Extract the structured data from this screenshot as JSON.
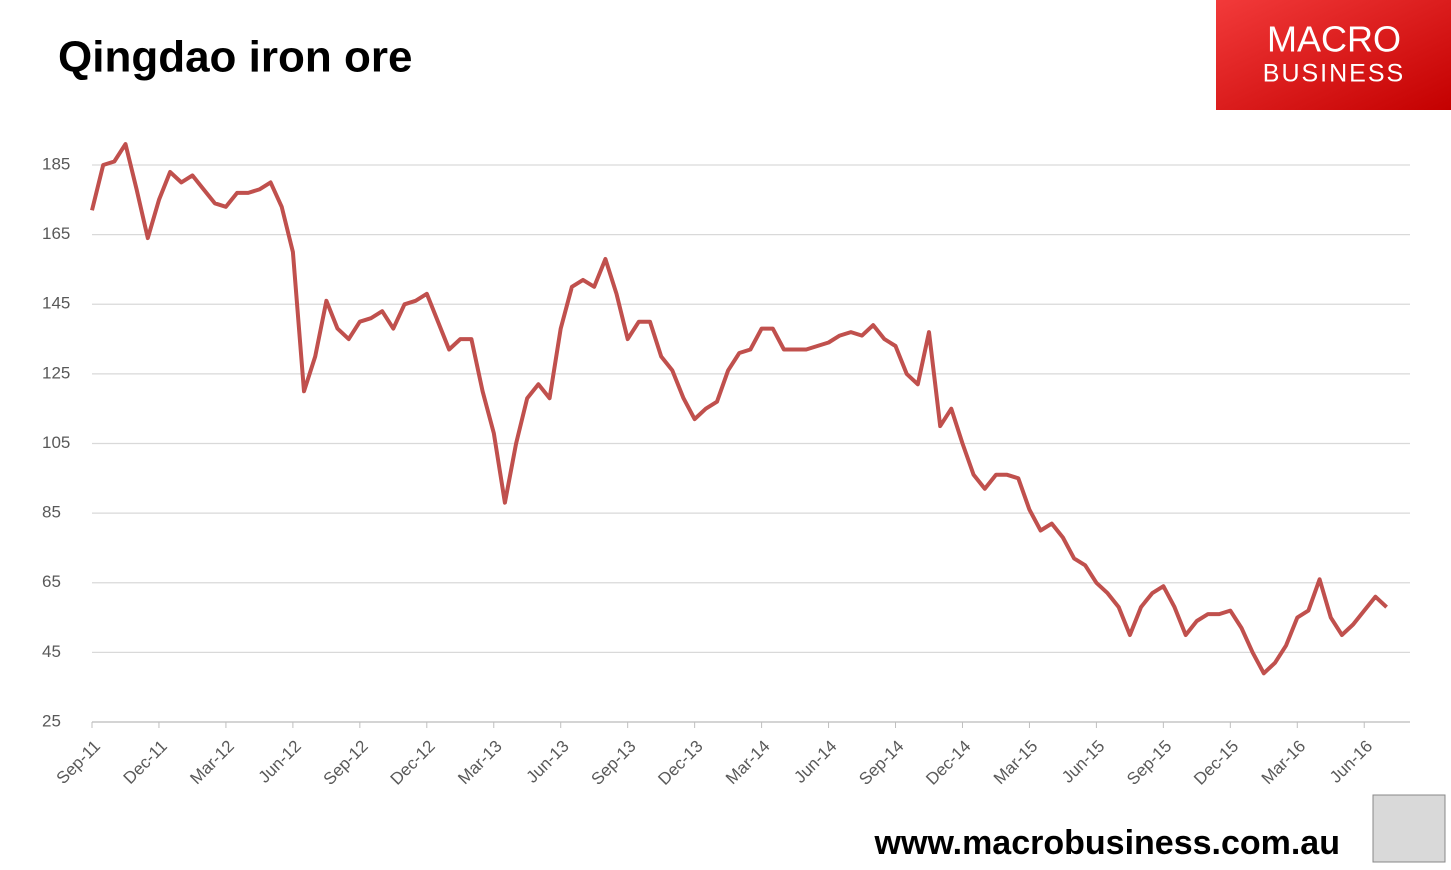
{
  "chart_data": {
    "type": "line",
    "title": "Qingdao iron ore",
    "brand": {
      "line1": "MACRO",
      "line2": "BUSINESS"
    },
    "footer": "www.macrobusiness.com.au",
    "categories": [
      "Sep-11",
      null,
      null,
      null,
      null,
      null,
      "Dec-11",
      null,
      null,
      null,
      null,
      null,
      "Mar-12",
      null,
      null,
      null,
      null,
      null,
      "Jun-12",
      null,
      null,
      null,
      null,
      null,
      "Sep-12",
      null,
      null,
      null,
      null,
      null,
      "Dec-12",
      null,
      null,
      null,
      null,
      null,
      "Mar-13",
      null,
      null,
      null,
      null,
      null,
      "Jun-13",
      null,
      null,
      null,
      null,
      null,
      "Sep-13",
      null,
      null,
      null,
      null,
      null,
      "Dec-13",
      null,
      null,
      null,
      null,
      null,
      "Mar-14",
      null,
      null,
      null,
      null,
      null,
      "Jun-14",
      null,
      null,
      null,
      null,
      null,
      "Sep-14",
      null,
      null,
      null,
      null,
      null,
      "Dec-14",
      null,
      null,
      null,
      null,
      null,
      "Mar-15",
      null,
      null,
      null,
      null,
      null,
      "Jun-15",
      null,
      null,
      null,
      null,
      null,
      "Sep-15",
      null,
      null,
      null,
      null,
      null,
      "Dec-15",
      null,
      null,
      null,
      null,
      null,
      "Mar-16",
      null,
      null,
      null,
      null,
      null,
      "Jun-16",
      null,
      null
    ],
    "series": [
      {
        "name": "Qingdao iron ore",
        "color": "#c0504d",
        "values": [
          172,
          185,
          186,
          191,
          178,
          164,
          175,
          183,
          180,
          182,
          178,
          174,
          173,
          177,
          177,
          178,
          180,
          173,
          160,
          120,
          130,
          146,
          138,
          135,
          140,
          141,
          143,
          138,
          145,
          146,
          148,
          140,
          132,
          135,
          135,
          120,
          108,
          88,
          105,
          118,
          122,
          118,
          138,
          150,
          152,
          150,
          158,
          148,
          135,
          140,
          140,
          130,
          126,
          118,
          112,
          115,
          117,
          126,
          131,
          132,
          138,
          138,
          132,
          132,
          132,
          133,
          134,
          136,
          137,
          136,
          139,
          135,
          133,
          125,
          122,
          137,
          110,
          115,
          105,
          96,
          92,
          96,
          96,
          95,
          86,
          80,
          82,
          78,
          72,
          70,
          65,
          62,
          58,
          50,
          58,
          62,
          64,
          58,
          50,
          54,
          56,
          56,
          57,
          52,
          45,
          39,
          42,
          47,
          55,
          57,
          66,
          55,
          50,
          53,
          57,
          61,
          58
        ]
      }
    ],
    "ylim": [
      25,
      185
    ],
    "yticks": [
      25,
      45,
      65,
      85,
      105,
      125,
      145,
      165,
      185
    ],
    "grid": true
  }
}
